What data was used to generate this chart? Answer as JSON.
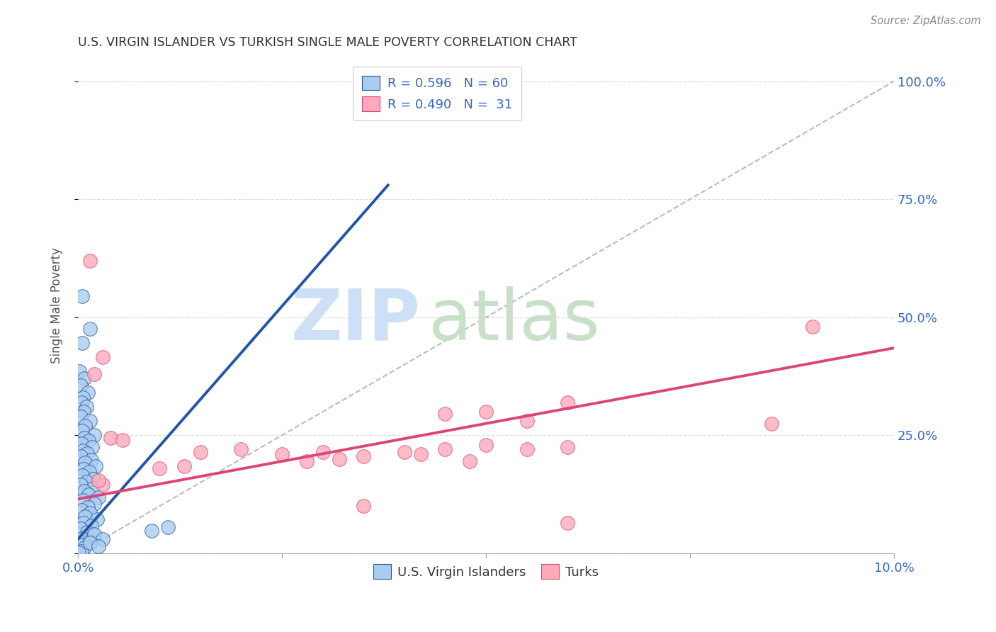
{
  "title": "U.S. VIRGIN ISLANDER VS TURKISH SINGLE MALE POVERTY CORRELATION CHART",
  "source": "Source: ZipAtlas.com",
  "ylabel": "Single Male Poverty",
  "y_ticks": [
    0.0,
    0.25,
    0.5,
    0.75,
    1.0
  ],
  "x_range": [
    0.0,
    0.1
  ],
  "y_range": [
    0.0,
    1.05
  ],
  "blue_scatter": [
    [
      0.0005,
      0.545
    ],
    [
      0.0015,
      0.475
    ],
    [
      0.0005,
      0.445
    ],
    [
      0.0002,
      0.385
    ],
    [
      0.0008,
      0.37
    ],
    [
      0.0003,
      0.355
    ],
    [
      0.0012,
      0.34
    ],
    [
      0.0006,
      0.33
    ],
    [
      0.0004,
      0.32
    ],
    [
      0.001,
      0.31
    ],
    [
      0.0007,
      0.3
    ],
    [
      0.0003,
      0.29
    ],
    [
      0.0015,
      0.28
    ],
    [
      0.0009,
      0.27
    ],
    [
      0.0005,
      0.26
    ],
    [
      0.002,
      0.25
    ],
    [
      0.0008,
      0.245
    ],
    [
      0.0013,
      0.238
    ],
    [
      0.0004,
      0.232
    ],
    [
      0.0017,
      0.225
    ],
    [
      0.0006,
      0.218
    ],
    [
      0.0011,
      0.212
    ],
    [
      0.0003,
      0.205
    ],
    [
      0.0016,
      0.198
    ],
    [
      0.0009,
      0.192
    ],
    [
      0.0022,
      0.185
    ],
    [
      0.0007,
      0.178
    ],
    [
      0.0014,
      0.172
    ],
    [
      0.0005,
      0.165
    ],
    [
      0.0019,
      0.158
    ],
    [
      0.001,
      0.152
    ],
    [
      0.0003,
      0.145
    ],
    [
      0.0018,
      0.138
    ],
    [
      0.0008,
      0.132
    ],
    [
      0.0013,
      0.125
    ],
    [
      0.0025,
      0.118
    ],
    [
      0.0006,
      0.112
    ],
    [
      0.002,
      0.105
    ],
    [
      0.0012,
      0.098
    ],
    [
      0.0004,
      0.092
    ],
    [
      0.0015,
      0.085
    ],
    [
      0.0009,
      0.078
    ],
    [
      0.0023,
      0.072
    ],
    [
      0.0007,
      0.065
    ],
    [
      0.0016,
      0.058
    ],
    [
      0.0003,
      0.052
    ],
    [
      0.0011,
      0.045
    ],
    [
      0.0019,
      0.038
    ],
    [
      0.0005,
      0.032
    ],
    [
      0.0014,
      0.025
    ],
    [
      0.0002,
      0.018
    ],
    [
      0.0008,
      0.012
    ],
    [
      0.0004,
      0.005
    ],
    [
      0.0001,
      0.002
    ],
    [
      0.011,
      0.055
    ],
    [
      0.009,
      0.048
    ],
    [
      0.002,
      0.04
    ],
    [
      0.003,
      0.03
    ],
    [
      0.0015,
      0.022
    ],
    [
      0.0025,
      0.015
    ]
  ],
  "pink_scatter": [
    [
      0.0015,
      0.62
    ],
    [
      0.003,
      0.415
    ],
    [
      0.002,
      0.38
    ],
    [
      0.004,
      0.245
    ],
    [
      0.0055,
      0.24
    ],
    [
      0.02,
      0.22
    ],
    [
      0.015,
      0.215
    ],
    [
      0.03,
      0.215
    ],
    [
      0.025,
      0.21
    ],
    [
      0.035,
      0.205
    ],
    [
      0.04,
      0.215
    ],
    [
      0.045,
      0.22
    ],
    [
      0.05,
      0.23
    ],
    [
      0.055,
      0.22
    ],
    [
      0.06,
      0.225
    ],
    [
      0.028,
      0.195
    ],
    [
      0.032,
      0.2
    ],
    [
      0.042,
      0.21
    ],
    [
      0.048,
      0.195
    ],
    [
      0.01,
      0.18
    ],
    [
      0.013,
      0.185
    ],
    [
      0.06,
      0.32
    ],
    [
      0.05,
      0.3
    ],
    [
      0.045,
      0.295
    ],
    [
      0.055,
      0.28
    ],
    [
      0.09,
      0.48
    ],
    [
      0.085,
      0.275
    ],
    [
      0.003,
      0.145
    ],
    [
      0.0025,
      0.155
    ],
    [
      0.035,
      0.1
    ],
    [
      0.06,
      0.065
    ]
  ],
  "blue_line_x": [
    0.0,
    0.038
  ],
  "blue_line_y": [
    0.03,
    0.78
  ],
  "pink_line_x": [
    0.0,
    0.1
  ],
  "pink_line_y": [
    0.115,
    0.435
  ],
  "diag_line_x": [
    0.0,
    0.1
  ],
  "diag_line_y": [
    0.0,
    1.0
  ],
  "blue_color": "#2255aa",
  "pink_color": "#dd4477",
  "blue_scatter_color": "#aaccee",
  "pink_scatter_color": "#ffaabb",
  "diagonal_color": "#bbbbbb",
  "legend_blue_text": "R = 0.596   N = 60",
  "legend_pink_text": "R = 0.490   N =  31",
  "bottom_legend": [
    "U.S. Virgin Islanders",
    "Turks"
  ],
  "background_color": "#ffffff",
  "grid_color": "#dddddd",
  "tick_color": "#3366cc",
  "watermark_zip_color": "#cde0f5",
  "watermark_atlas_color": "#c8dfc8"
}
